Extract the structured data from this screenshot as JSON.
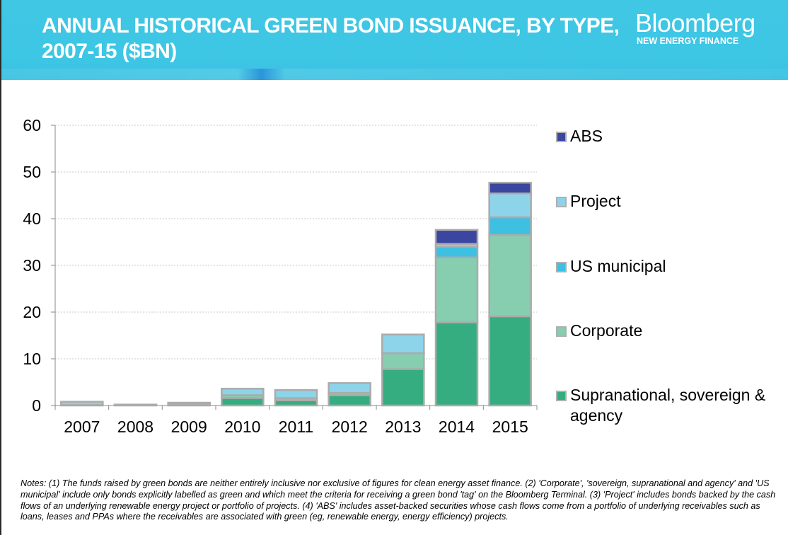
{
  "header": {
    "title": "ANNUAL HISTORICAL GREEN BOND ISSUANCE, BY TYPE, 2007-15 ($BN)",
    "logo_brand": "Bloomberg",
    "logo_sub": "NEW ENERGY FINANCE",
    "color": "#3ec6e5"
  },
  "chart_data": {
    "type": "bar",
    "stacked": true,
    "title": "Annual historical green bond issuance, by type, 2007-15 ($bn)",
    "xlabel": "",
    "ylabel": "",
    "ylim": [
      0,
      60
    ],
    "yticks": [
      0,
      10,
      20,
      30,
      40,
      50,
      60
    ],
    "grid": true,
    "legend_position": "right",
    "categories": [
      "2007",
      "2008",
      "2009",
      "2010",
      "2011",
      "2012",
      "2013",
      "2014",
      "2015"
    ],
    "series": [
      {
        "name": "Supranational, sovereign & agency",
        "color": "#36ad80",
        "values": [
          0.1,
          0.1,
          0.2,
          1.6,
          1.1,
          2.2,
          7.8,
          17.8,
          19.1
        ]
      },
      {
        "name": "Corporate",
        "color": "#87cdb0",
        "values": [
          0.0,
          0.1,
          0.4,
          0.6,
          0.5,
          0.5,
          3.4,
          13.9,
          17.4
        ]
      },
      {
        "name": "US municipal",
        "color": "#3dc0e2",
        "values": [
          0.0,
          0.0,
          0.0,
          0.0,
          0.0,
          0.0,
          0.0,
          2.3,
          3.8
        ]
      },
      {
        "name": "Project",
        "color": "#8dd4ea",
        "values": [
          0.7,
          0.0,
          0.0,
          1.4,
          1.7,
          2.1,
          4.0,
          0.6,
          5.1
        ]
      },
      {
        "name": "ABS",
        "color": "#3b46a0",
        "values": [
          0.0,
          0.0,
          0.0,
          0.0,
          0.0,
          0.0,
          0.0,
          3.0,
          2.3
        ]
      }
    ],
    "legend_order": [
      "ABS",
      "Project",
      "US municipal",
      "Corporate",
      "Supranational, sovereign & agency"
    ]
  },
  "legend": {
    "items": [
      {
        "label": "ABS",
        "color": "#3b46a0"
      },
      {
        "label": "Project",
        "color": "#8dd4ea"
      },
      {
        "label": "US municipal",
        "color": "#3dc0e2"
      },
      {
        "label": "Corporate",
        "color": "#87cdb0"
      },
      {
        "label": "Supranational, sovereign & agency",
        "color": "#36ad80"
      }
    ]
  },
  "notes": "Notes: (1) The funds raised by green bonds are neither entirely inclusive nor exclusive of figures for clean energy asset finance. (2) 'Corporate', 'sovereign, supranational and agency' and 'US municipal' include only bonds explicitly labelled as green and which meet the criteria for receiving a green bond 'tag' on the Bloomberg Terminal. (3) 'Project' includes bonds backed by the cash flows of an underlying renewable energy project or portfolio of projects. (4) 'ABS' includes asset-backed securities whose cash flows come from a portfolio of underlying receivables such as loans, leases and PPAs where the receivables are associated with green (eg, renewable energy, energy efficiency) projects."
}
